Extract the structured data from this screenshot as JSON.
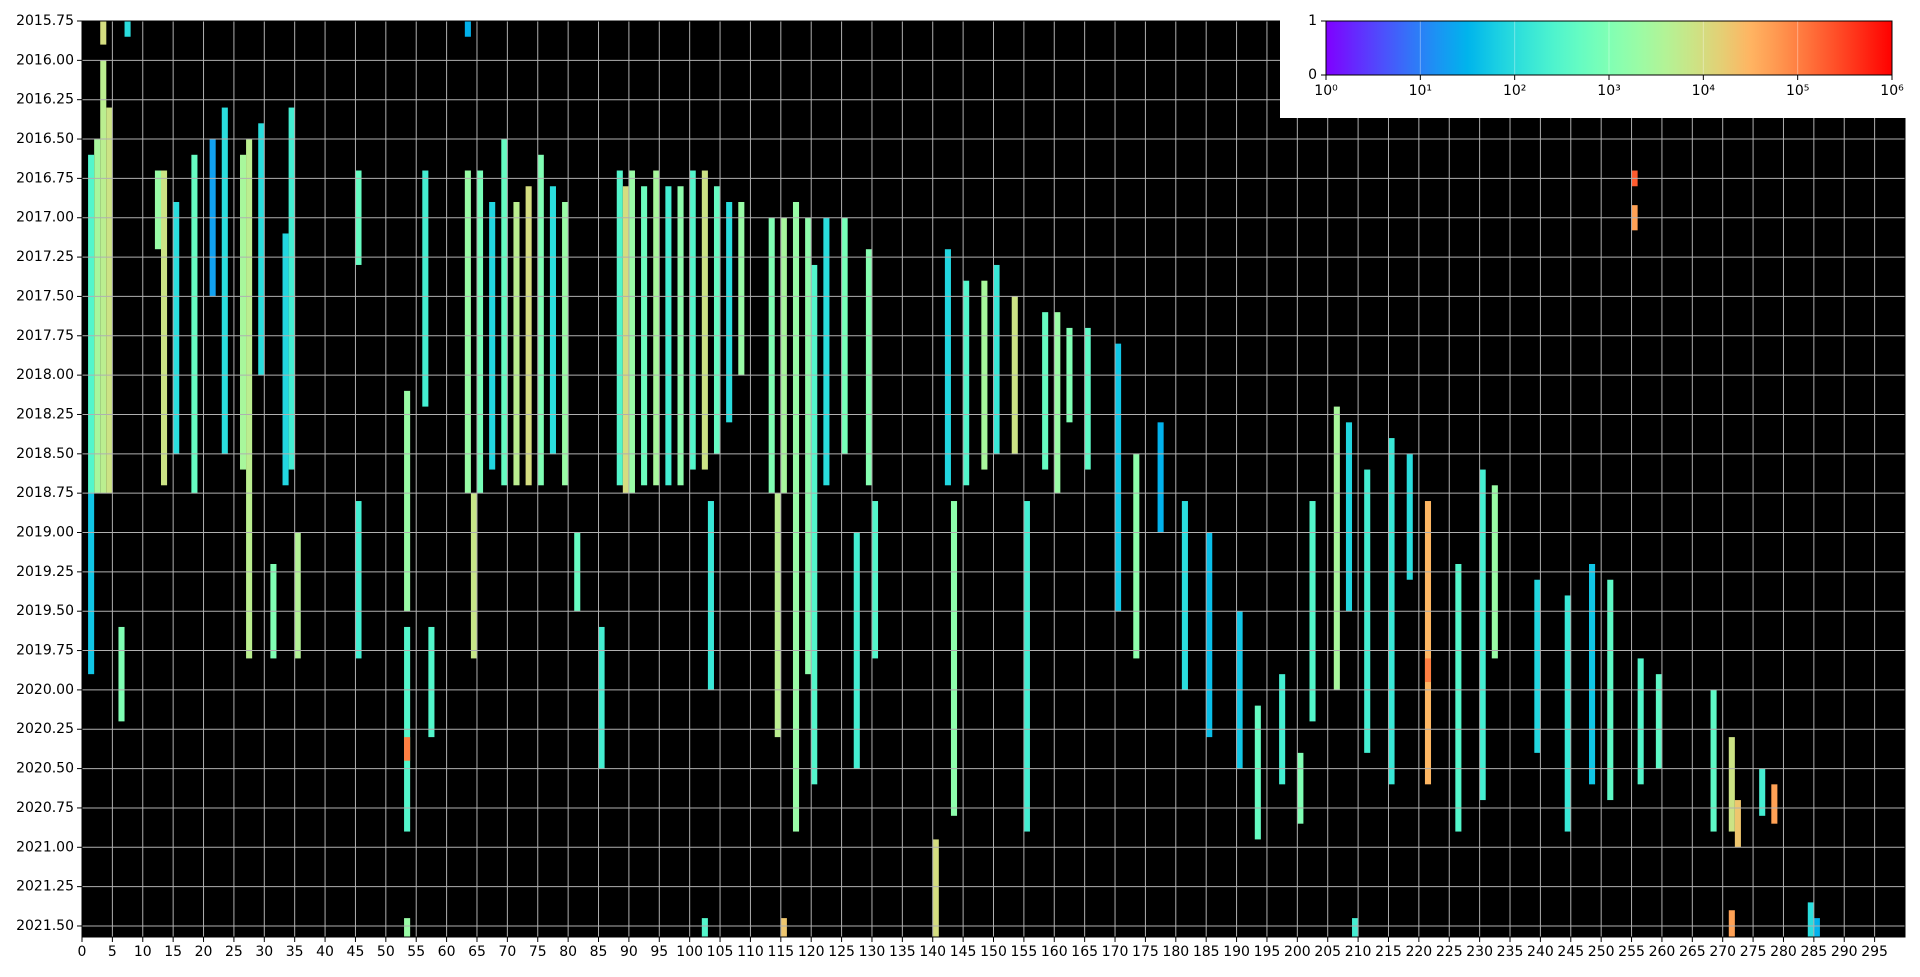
{
  "chart_data": {
    "type": "heatmap",
    "colormap": "rainbow",
    "background": "#000000",
    "grid": true,
    "grid_color": "#b0b0b0",
    "xlim": [
      0,
      300
    ],
    "xticks": [
      0,
      5,
      10,
      15,
      20,
      25,
      30,
      35,
      40,
      45,
      50,
      55,
      60,
      65,
      70,
      75,
      80,
      85,
      90,
      95,
      100,
      105,
      110,
      115,
      120,
      125,
      130,
      135,
      140,
      145,
      150,
      155,
      160,
      165,
      170,
      175,
      180,
      185,
      190,
      195,
      200,
      205,
      210,
      215,
      220,
      225,
      230,
      235,
      240,
      245,
      250,
      255,
      260,
      265,
      270,
      275,
      280,
      285,
      290,
      295
    ],
    "ylim": [
      2015.75,
      2021.57
    ],
    "yticks": [
      2015.75,
      {
        "value": 2016,
        "label": "2016.00"
      },
      2016.25,
      {
        "value": 2016.5,
        "label": "2016.50"
      },
      2016.75,
      {
        "value": 2017,
        "label": "2017.00"
      },
      2017.25,
      {
        "value": 2017.5,
        "label": "2017.50"
      },
      2017.75,
      {
        "value": 2018,
        "label": "2018.00"
      },
      2018.25,
      {
        "value": 2018.5,
        "label": "2018.50"
      },
      2018.75,
      {
        "value": 2019,
        "label": "2019.00"
      },
      2019.25,
      {
        "value": 2019.5,
        "label": "2019.50"
      },
      2019.75,
      {
        "value": 2020,
        "label": "2020.00"
      },
      2020.25,
      {
        "value": 2020.5,
        "label": "2020.50"
      },
      2020.75,
      {
        "value": 2021,
        "label": "2021.00"
      },
      2021.25,
      {
        "value": 2021.5,
        "label": "2021.50"
      }
    ],
    "colorbar": {
      "lim": [
        1,
        1000000
      ],
      "log": true,
      "ticks": [
        {
          "value": 1,
          "label": "10⁰"
        },
        {
          "value": 10,
          "label": "10¹"
        },
        {
          "value": 100,
          "label": "10²"
        },
        {
          "value": 1000,
          "label": "10³"
        },
        {
          "value": 10000,
          "label": "10⁴"
        },
        {
          "value": 100000,
          "label": "10⁵"
        },
        {
          "value": 1000000,
          "label": "10⁶"
        }
      ],
      "ylim": [
        0,
        1
      ],
      "yticks": [
        0,
        1
      ]
    },
    "x": [
      2,
      3,
      4,
      1,
      1,
      6,
      13,
      12,
      15,
      18,
      21,
      23,
      26,
      27,
      29,
      31,
      33,
      34,
      35,
      45,
      45,
      53,
      53,
      53,
      56,
      57,
      63,
      64,
      65,
      67,
      69,
      71,
      73,
      75,
      77,
      79,
      81,
      85,
      88,
      89,
      90,
      92,
      94,
      96,
      98,
      100,
      102,
      104,
      103,
      106,
      108,
      113,
      114,
      115,
      117,
      119,
      120,
      122,
      125,
      127,
      129,
      130,
      142,
      143,
      145,
      148,
      150,
      153,
      155,
      158,
      160,
      162,
      165,
      170,
      173,
      177,
      181,
      185,
      190,
      193,
      197,
      200,
      202,
      206,
      208,
      211,
      215,
      218,
      221,
      221,
      226,
      230,
      232,
      239,
      244,
      248,
      251,
      256,
      255,
      255,
      259,
      268,
      271,
      272,
      278,
      276,
      140,
      284,
      271,
      285,
      102,
      115,
      53,
      209,
      3,
      7,
      63
    ],
    "y0": [
      2016.5,
      2016.0,
      2016.3,
      2016.6,
      2018.75,
      2019.6,
      2016.7,
      2016.7,
      2016.9,
      2016.6,
      2016.5,
      2016.3,
      2016.6,
      2016.5,
      2016.4,
      2019.2,
      2017.1,
      2016.3,
      2019.0,
      2016.7,
      2018.8,
      2018.1,
      2019.6,
      2020.3,
      2016.7,
      2019.6,
      2016.7,
      2018.75,
      2016.7,
      2016.9,
      2016.5,
      2016.9,
      2016.8,
      2016.6,
      2016.8,
      2016.9,
      2019.0,
      2019.6,
      2016.7,
      2016.8,
      2016.7,
      2016.8,
      2016.7,
      2016.8,
      2016.8,
      2016.7,
      2016.7,
      2016.8,
      2018.8,
      2016.9,
      2016.9,
      2017.0,
      2018.75,
      2017.0,
      2016.9,
      2017.0,
      2017.3,
      2017.0,
      2017.0,
      2019.0,
      2017.2,
      2018.8,
      2017.2,
      2018.8,
      2017.4,
      2017.4,
      2017.3,
      2017.5,
      2018.8,
      2017.6,
      2017.6,
      2017.7,
      2017.7,
      2017.8,
      2018.5,
      2018.3,
      2018.8,
      2019.0,
      2019.5,
      2020.1,
      2019.9,
      2020.4,
      2018.8,
      2018.2,
      2018.3,
      2018.6,
      2018.4,
      2018.5,
      2018.8,
      2019.8,
      2019.2,
      2018.6,
      2018.7,
      2019.3,
      2019.4,
      2019.2,
      2019.3,
      2019.8,
      2016.7,
      2016.92,
      2019.9,
      2020.0,
      2020.3,
      2020.7,
      2020.6,
      2020.5,
      2020.95,
      2021.35,
      2021.4,
      2021.45,
      2021.45,
      2021.45,
      2021.45,
      2021.45,
      2015.75,
      2015.75,
      2015.75
    ],
    "y1": [
      2018.75,
      2018.75,
      2018.75,
      2018.75,
      2019.9,
      2020.2,
      2018.7,
      2017.2,
      2018.5,
      2018.75,
      2017.5,
      2018.5,
      2018.6,
      2019.8,
      2018.0,
      2019.8,
      2018.7,
      2018.6,
      2019.8,
      2017.3,
      2019.8,
      2019.5,
      2020.9,
      2020.45,
      2018.2,
      2020.3,
      2018.75,
      2019.8,
      2018.75,
      2018.6,
      2018.7,
      2018.7,
      2018.7,
      2018.7,
      2018.5,
      2018.7,
      2019.5,
      2020.5,
      2018.7,
      2018.75,
      2018.75,
      2018.7,
      2018.7,
      2018.7,
      2018.7,
      2018.6,
      2018.6,
      2018.5,
      2020.0,
      2018.3,
      2018.0,
      2018.75,
      2020.3,
      2018.75,
      2020.9,
      2019.9,
      2020.6,
      2018.7,
      2018.5,
      2020.5,
      2018.7,
      2019.8,
      2018.7,
      2020.8,
      2018.7,
      2018.6,
      2018.5,
      2018.5,
      2020.9,
      2018.6,
      2018.75,
      2018.3,
      2018.6,
      2019.5,
      2019.8,
      2019.0,
      2020.0,
      2020.3,
      2020.5,
      2020.95,
      2020.6,
      2020.85,
      2020.2,
      2020.0,
      2019.5,
      2020.4,
      2020.6,
      2019.3,
      2020.6,
      2019.95,
      2020.9,
      2020.7,
      2019.8,
      2020.4,
      2020.9,
      2020.6,
      2020.7,
      2020.6,
      2016.8,
      2017.08,
      2020.5,
      2020.9,
      2020.9,
      2021.0,
      2020.85,
      2020.8,
      2021.57,
      2021.57,
      2021.57,
      2021.57,
      2021.57,
      2021.57,
      2021.57,
      2021.57,
      2015.9,
      2015.85,
      2015.85
    ],
    "values": [
      3000,
      5000,
      8000,
      300,
      50,
      1000,
      8000,
      2000,
      100,
      500,
      20,
      100,
      3000,
      5000,
      100,
      1000,
      80,
      200,
      4000,
      500,
      200,
      2000,
      300,
      100000,
      200,
      300,
      2000,
      7000,
      800,
      80,
      500,
      5000,
      10000,
      1000,
      100,
      2000,
      500,
      200,
      300,
      10000,
      2000,
      600,
      3000,
      200,
      1500,
      300,
      8000,
      500,
      150,
      100,
      2000,
      1000,
      5000,
      3000,
      2000,
      1500,
      300,
      100,
      800,
      200,
      1200,
      300,
      80,
      1500,
      300,
      3000,
      150,
      8000,
      200,
      500,
      2000,
      1000,
      400,
      50,
      1500,
      30,
      100,
      40,
      50,
      500,
      200,
      1000,
      300,
      3000,
      80,
      200,
      150,
      100,
      30000,
      100000,
      300,
      200,
      2000,
      80,
      150,
      50,
      400,
      300,
      200000,
      50000,
      400,
      400,
      8000,
      20000,
      50000,
      200,
      10000,
      100,
      50000,
      30,
      300,
      20000,
      2000,
      200,
      10000,
      100,
      30
    ]
  }
}
